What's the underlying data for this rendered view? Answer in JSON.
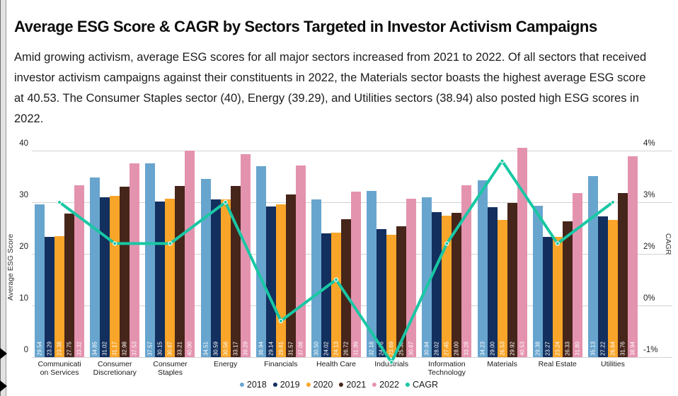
{
  "page": {
    "title": "Average ESG Score & CAGR by Sectors Targeted in Investor Activism Campaigns",
    "description": "Amid growing activism, average ESG scores for all major sectors increased from 2021 to 2022. Of all sectors that received investor activism campaigns against their constituents in 2022, the Materials sector boasts the highest average ESG score at 40.53. The Consumer Staples sector (40), Energy (39.29), and Utilities sectors (38.94) also posted high ESG scores in 2022."
  },
  "icons": {
    "left_edge_arrows": "black-triangle-icon"
  },
  "chart_data": {
    "type": "bar",
    "title": "Average ESG Score & CAGR by Sectors Targeted in Investor Activism Campaigns",
    "categories": [
      "Communication Services",
      "Consumer Discretionary",
      "Consumer Staples",
      "Energy",
      "Financials",
      "Health Care",
      "Industrials",
      "Information Technology",
      "Materials",
      "Real Estate",
      "Utilities"
    ],
    "category_label_lines": [
      [
        "Communicati",
        "on Services"
      ],
      [
        "Consumer",
        "Discretionary"
      ],
      [
        "Consumer",
        "Staples"
      ],
      [
        "Energy"
      ],
      [
        "Financials"
      ],
      [
        "Health Care"
      ],
      [
        "Industrials"
      ],
      [
        "Information",
        "Technology"
      ],
      [
        "Materials"
      ],
      [
        "Real Estate"
      ],
      [
        "Utilities"
      ]
    ],
    "series": [
      {
        "name": "2018",
        "color": "#68A5CE",
        "values": [
          29.54,
          34.85,
          37.57,
          34.51,
          36.94,
          30.5,
          32.18,
          30.94,
          34.23,
          29.38,
          35.13
        ]
      },
      {
        "name": "2019",
        "color": "#122F5E",
        "values": [
          23.29,
          31.02,
          30.15,
          30.59,
          29.14,
          24.02,
          24.76,
          28.02,
          29.0,
          23.27,
          27.22
        ]
      },
      {
        "name": "2020",
        "color": "#F9A529",
        "values": [
          23.38,
          31.17,
          30.67,
          30.56,
          29.61,
          24.13,
          23.69,
          27.45,
          26.53,
          23.24,
          26.64
        ]
      },
      {
        "name": "2021",
        "color": "#46251A",
        "values": [
          27.75,
          32.98,
          33.21,
          33.17,
          31.57,
          26.72,
          25.38,
          28.0,
          29.92,
          26.33,
          31.76
        ]
      },
      {
        "name": "2022",
        "color": "#E493AF",
        "values": [
          33.32,
          37.53,
          40.0,
          39.29,
          37.08,
          31.99,
          30.67,
          33.28,
          40.53,
          31.8,
          38.94
        ]
      }
    ],
    "line_series": {
      "name": "CAGR",
      "color": "#19C7A4",
      "values_percent": [
        3.0,
        2.2,
        2.2,
        3.0,
        -0.3,
        1.0,
        -1.1,
        2.2,
        3.8,
        2.2,
        3.0
      ]
    },
    "ylabel": "Average ESG Score",
    "y2label": "CAGR",
    "ylim": [
      0,
      40
    ],
    "yticks": [
      40,
      30,
      20,
      10,
      0
    ],
    "y2ticks": [
      {
        "label": "4%",
        "value": 4
      },
      {
        "label": "3%",
        "value": 3
      },
      {
        "label": "2%",
        "value": 2
      },
      {
        "label": "0%",
        "value": 0
      },
      {
        "label": "-1%",
        "value": -1
      }
    ],
    "grid": true,
    "legend_position": "bottom",
    "legend": [
      "2018",
      "2019",
      "2020",
      "2021",
      "2022",
      "CAGR"
    ]
  }
}
